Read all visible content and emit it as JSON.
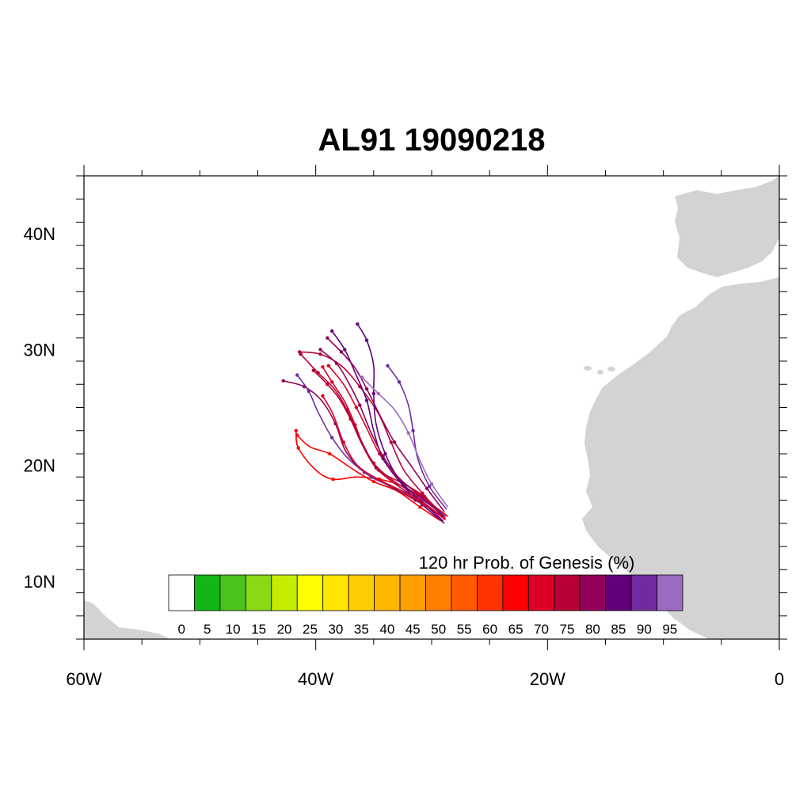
{
  "title": "AL91 19090218",
  "map": {
    "lon_range": [
      -60,
      0
    ],
    "lat_range": [
      5,
      45
    ],
    "lon_ticks": [
      {
        "value": -60,
        "label": "60W"
      },
      {
        "value": -40,
        "label": "40W"
      },
      {
        "value": -20,
        "label": "20W"
      },
      {
        "value": 0,
        "label": "0"
      }
    ],
    "lat_ticks": [
      {
        "value": 10,
        "label": "10N"
      },
      {
        "value": 20,
        "label": "20N"
      },
      {
        "value": 30,
        "label": "30N"
      },
      {
        "value": 40,
        "label": "40N"
      }
    ],
    "land_color": "#d3d3d3"
  },
  "colorbar": {
    "title": "120 hr Prob. of Genesis (%)",
    "labels": [
      "0",
      "5",
      "10",
      "15",
      "20",
      "25",
      "30",
      "35",
      "40",
      "45",
      "50",
      "55",
      "60",
      "65",
      "70",
      "75",
      "80",
      "85",
      "90",
      "95"
    ],
    "colors": [
      "#ffffff",
      "#12b617",
      "#4cc21d",
      "#8ad915",
      "#c4ed00",
      "#ffff00",
      "#ffe500",
      "#ffcd00",
      "#ffb600",
      "#ff9f00",
      "#ff8000",
      "#ff5a00",
      "#ff3300",
      "#ff0000",
      "#dc0026",
      "#b80036",
      "#920057",
      "#62007b",
      "#712ba0",
      "#9b6bc2"
    ]
  },
  "chart_data": {
    "type": "track-map",
    "description_units": "longitude (degrees, negative = W), latitude (degrees N)",
    "tracks": [
      {
        "color": "#ff0000",
        "points": [
          [
            -29.2,
            15.2
          ],
          [
            -31,
            16.4
          ],
          [
            -33,
            17.8
          ],
          [
            -35,
            18.6
          ],
          [
            -37,
            19.8
          ],
          [
            -38.8,
            21.0
          ],
          [
            -40.5,
            21.6
          ],
          [
            -41.6,
            22.6
          ]
        ]
      },
      {
        "color": "#ff0000",
        "points": [
          [
            -28.6,
            15.6
          ],
          [
            -30.5,
            17
          ],
          [
            -32.5,
            18.2
          ],
          [
            -34.5,
            18.8
          ],
          [
            -36.5,
            19.0
          ],
          [
            -38.5,
            18.8
          ],
          [
            -40,
            19.6
          ],
          [
            -41.5,
            21.5
          ],
          [
            -41.7,
            23.0
          ]
        ]
      },
      {
        "color": "#dc0026",
        "points": [
          [
            -28.8,
            15.4
          ],
          [
            -30.6,
            17.3
          ],
          [
            -32.6,
            18.5
          ],
          [
            -34.6,
            19.6
          ],
          [
            -35.8,
            21.5
          ],
          [
            -36.6,
            23.5
          ],
          [
            -37.5,
            25.5
          ],
          [
            -38.6,
            27.2
          ],
          [
            -39.4,
            28.5
          ]
        ]
      },
      {
        "color": "#dc0026",
        "points": [
          [
            -29,
            15.8
          ],
          [
            -31,
            17.5
          ],
          [
            -33,
            19.0
          ],
          [
            -34.5,
            21.0
          ],
          [
            -35.6,
            23.2
          ],
          [
            -36.5,
            25.0
          ],
          [
            -37.6,
            27.0
          ],
          [
            -38.9,
            28.6
          ]
        ]
      },
      {
        "color": "#b80036",
        "points": [
          [
            -29,
            15.6
          ],
          [
            -30.8,
            17.6
          ],
          [
            -32.4,
            19.6
          ],
          [
            -33.5,
            22.0
          ],
          [
            -34.6,
            24.5
          ],
          [
            -36.2,
            26.8
          ],
          [
            -37.8,
            28.6
          ],
          [
            -39.6,
            29.6
          ],
          [
            -41.4,
            29.8
          ]
        ]
      },
      {
        "color": "#b80036",
        "points": [
          [
            -29.1,
            15.9
          ],
          [
            -31.2,
            17.4
          ],
          [
            -33.2,
            18.6
          ],
          [
            -35,
            20.2
          ],
          [
            -36.2,
            22.4
          ],
          [
            -37.3,
            24.8
          ],
          [
            -38.4,
            26.6
          ],
          [
            -39.8,
            28.0
          ],
          [
            -41.3,
            29.6
          ]
        ]
      },
      {
        "color": "#920057",
        "points": [
          [
            -28.9,
            16.0
          ],
          [
            -30.4,
            18.0
          ],
          [
            -31.8,
            20.0
          ],
          [
            -33.2,
            22.0
          ],
          [
            -34.4,
            24.2
          ],
          [
            -35.6,
            26.6
          ],
          [
            -36.6,
            28.4
          ],
          [
            -37.8,
            29.8
          ],
          [
            -39.0,
            31.0
          ]
        ]
      },
      {
        "color": "#920057",
        "points": [
          [
            -29.2,
            15.7
          ],
          [
            -31.4,
            17.0
          ],
          [
            -33.6,
            18.2
          ],
          [
            -35.8,
            19.4
          ],
          [
            -37.4,
            21.2
          ],
          [
            -38.3,
            23.6
          ],
          [
            -39.5,
            25.6
          ],
          [
            -41.0,
            26.8
          ],
          [
            -42.8,
            27.3
          ]
        ]
      },
      {
        "color": "#62007b",
        "points": [
          [
            -28.9,
            15.0
          ],
          [
            -30.8,
            16.6
          ],
          [
            -32.6,
            18.4
          ],
          [
            -34.2,
            20.6
          ],
          [
            -35.0,
            23.0
          ],
          [
            -35.6,
            25.6
          ],
          [
            -36.6,
            28.0
          ],
          [
            -37.5,
            30.0
          ],
          [
            -38.6,
            31.6
          ]
        ]
      },
      {
        "color": "#62007b",
        "points": [
          [
            -29.0,
            15.2
          ],
          [
            -31.0,
            17.0
          ],
          [
            -32.8,
            18.8
          ],
          [
            -34.0,
            21.0
          ],
          [
            -34.8,
            23.6
          ],
          [
            -35.0,
            26.2
          ],
          [
            -35.0,
            28.6
          ],
          [
            -35.6,
            30.8
          ],
          [
            -36.4,
            32.2
          ]
        ]
      },
      {
        "color": "#712ba0",
        "points": [
          [
            -28.7,
            16.2
          ],
          [
            -30.2,
            18.2
          ],
          [
            -31.2,
            20.6
          ],
          [
            -31.6,
            23.0
          ],
          [
            -32.0,
            25.2
          ],
          [
            -32.8,
            27.2
          ],
          [
            -33.8,
            28.6
          ]
        ]
      },
      {
        "color": "#712ba0",
        "points": [
          [
            -28.8,
            15.6
          ],
          [
            -30.8,
            17.0
          ],
          [
            -33.0,
            18.0
          ],
          [
            -35.2,
            19.0
          ],
          [
            -37.2,
            20.6
          ],
          [
            -38.6,
            22.4
          ],
          [
            -39.8,
            24.6
          ],
          [
            -40.6,
            26.4
          ],
          [
            -41.6,
            27.8
          ]
        ]
      },
      {
        "color": "#9b6bc2",
        "points": [
          [
            -28.6,
            16.4
          ],
          [
            -30.0,
            18.4
          ],
          [
            -31.0,
            20.4
          ],
          [
            -32.0,
            22.8
          ],
          [
            -33.2,
            24.8
          ],
          [
            -34.6,
            26.2
          ],
          [
            -36.0,
            27.6
          ]
        ]
      },
      {
        "color": "#b80036",
        "points": [
          [
            -29.0,
            15.5
          ],
          [
            -31.0,
            17.0
          ],
          [
            -33.0,
            18.3
          ],
          [
            -34.8,
            19.8
          ],
          [
            -36.0,
            21.8
          ],
          [
            -37.0,
            24.0
          ],
          [
            -38.0,
            25.8
          ],
          [
            -39.0,
            27.0
          ],
          [
            -40.2,
            28.2
          ]
        ]
      },
      {
        "color": "#dc0026",
        "points": [
          [
            -28.8,
            15.3
          ],
          [
            -30.6,
            16.6
          ],
          [
            -32.6,
            17.8
          ],
          [
            -34.6,
            18.8
          ],
          [
            -36.4,
            20.0
          ],
          [
            -37.6,
            22.0
          ],
          [
            -38.5,
            24.4
          ],
          [
            -39.4,
            26.0
          ]
        ]
      },
      {
        "color": "#920057",
        "points": [
          [
            -29.0,
            15.6
          ],
          [
            -30.9,
            17.3
          ],
          [
            -32.8,
            18.9
          ],
          [
            -34.2,
            20.8
          ],
          [
            -35.3,
            23.0
          ],
          [
            -36.2,
            25.2
          ],
          [
            -37.2,
            27.2
          ],
          [
            -38.2,
            28.8
          ],
          [
            -39.6,
            30.0
          ]
        ]
      }
    ]
  }
}
